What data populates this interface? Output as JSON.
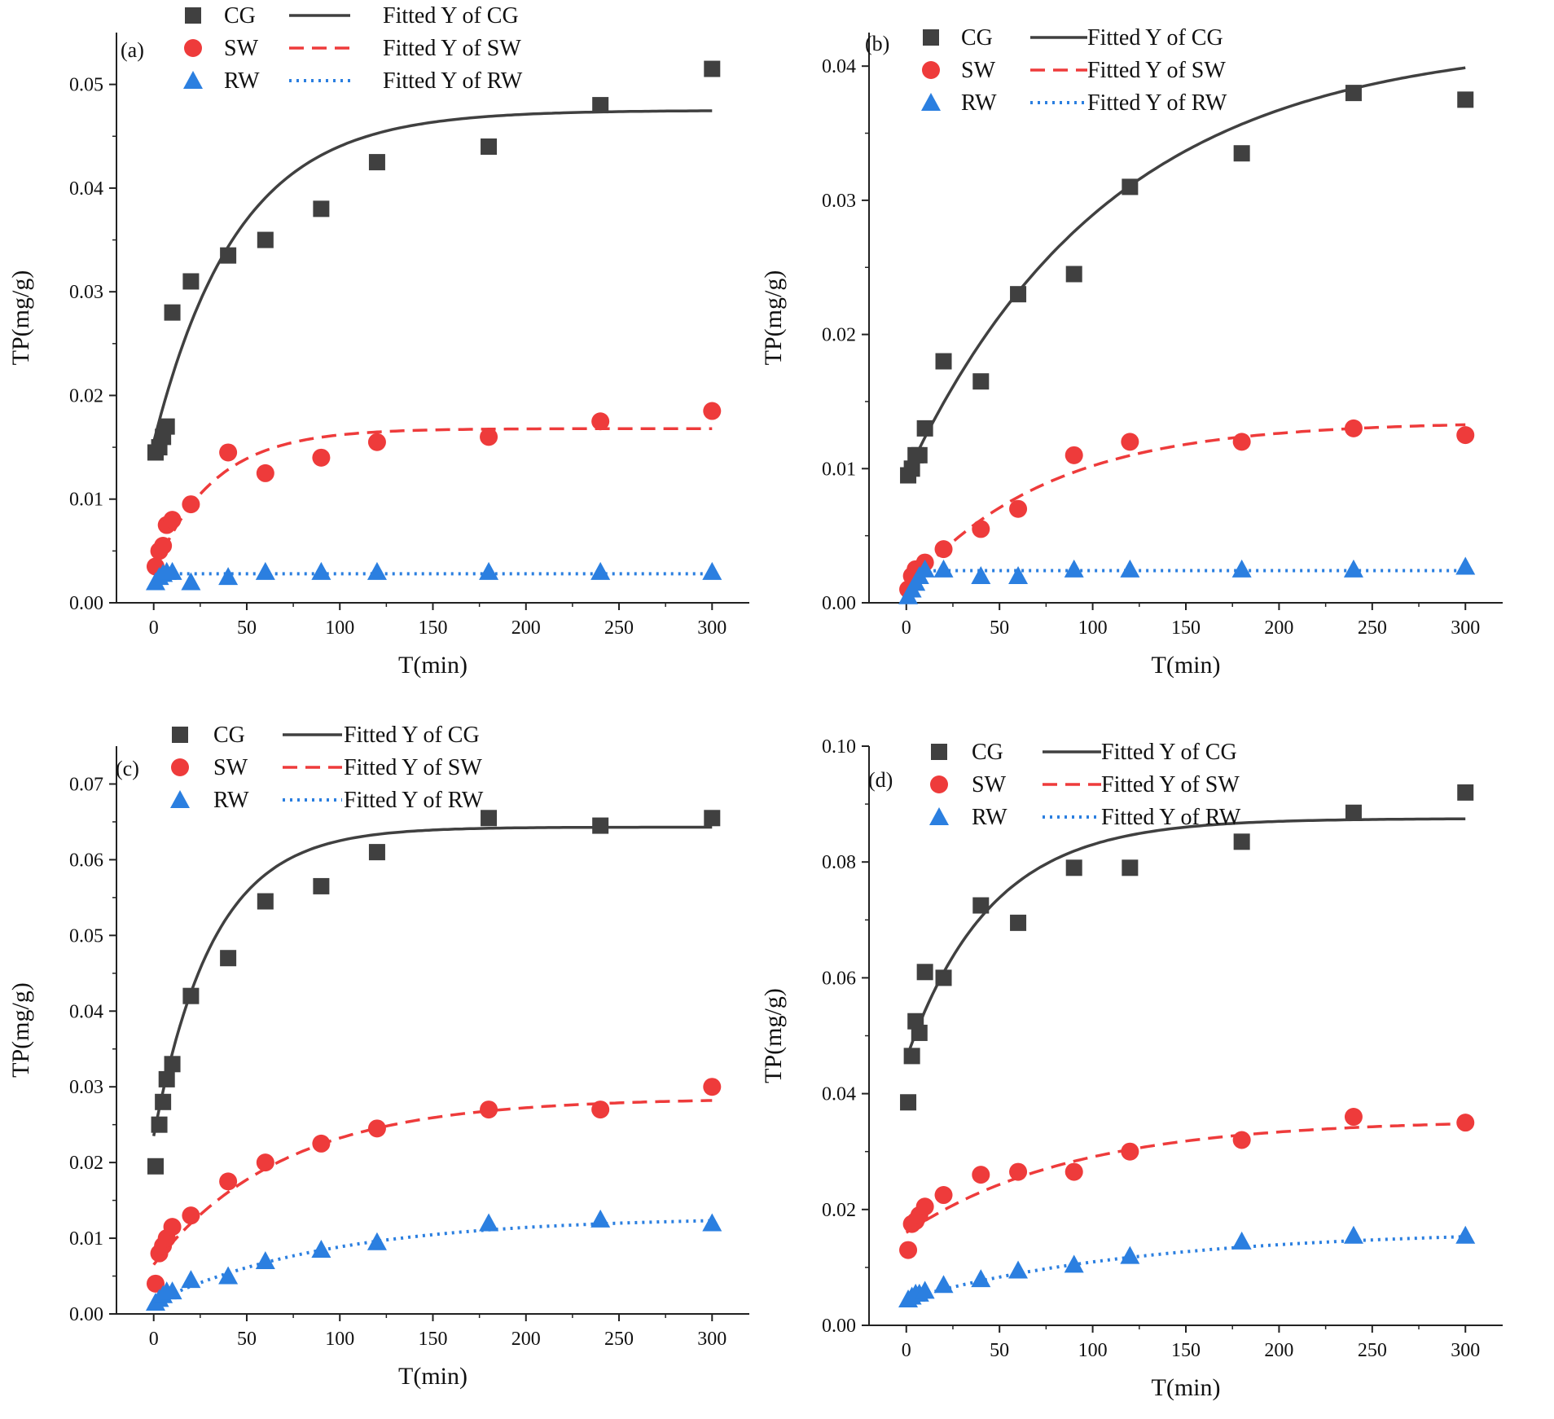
{
  "chart_data": [
    {
      "panel": "(a)",
      "type": "scatter",
      "xlabel": "T(min)",
      "ylabel": "TP(mg/g)",
      "xlim": [
        -20,
        320
      ],
      "ylim": [
        0,
        0.055
      ],
      "xticks": [
        0,
        50,
        100,
        150,
        200,
        250,
        300
      ],
      "xtick_labels": [
        "0",
        "50",
        "100",
        "150",
        "200",
        "250",
        "300"
      ],
      "yticks": [
        0,
        0.01,
        0.02,
        0.03,
        0.04,
        0.05
      ],
      "ytick_labels": [
        "0.00",
        "0.01",
        "0.02",
        "0.03",
        "0.04",
        "0.05"
      ],
      "series": [
        {
          "name": "CG",
          "marker": "square",
          "color": "#404040",
          "x": [
            1,
            3,
            5,
            7,
            10,
            20,
            40,
            60,
            90,
            120,
            180,
            240,
            300
          ],
          "y": [
            0.0145,
            0.015,
            0.016,
            0.017,
            0.028,
            0.031,
            0.0335,
            0.035,
            0.038,
            0.0425,
            0.044,
            0.048,
            0.0515
          ]
        },
        {
          "name": "SW",
          "marker": "circle",
          "color": "#ee3b3b",
          "x": [
            1,
            3,
            5,
            7,
            10,
            20,
            40,
            60,
            90,
            120,
            180,
            240,
            300
          ],
          "y": [
            0.0035,
            0.005,
            0.0055,
            0.0075,
            0.008,
            0.0095,
            0.0145,
            0.0125,
            0.014,
            0.0155,
            0.016,
            0.0175,
            0.0185
          ]
        },
        {
          "name": "RW",
          "marker": "triangle",
          "color": "#2b7fe0",
          "x": [
            1,
            3,
            5,
            7,
            10,
            20,
            40,
            60,
            90,
            120,
            180,
            240,
            300
          ],
          "y": [
            0.002,
            0.0025,
            0.0028,
            0.003,
            0.003,
            0.002,
            0.0025,
            0.003,
            0.003,
            0.003,
            0.003,
            0.003,
            0.003
          ]
        }
      ],
      "fits": [
        {
          "name": "Fitted Y of CG",
          "style": "solid",
          "color": "#404040",
          "a": 0.0475,
          "b": 0.0155,
          "tau": 45
        },
        {
          "name": "Fitted Y of SW",
          "style": "dash",
          "color": "#ee3b3b",
          "a": 0.0168,
          "b": 0.003,
          "tau": 32
        },
        {
          "name": "Fitted Y of RW",
          "style": "dot",
          "color": "#2b7fe0",
          "a": 0.0028,
          "b": 0.002,
          "tau": 2
        }
      ]
    },
    {
      "panel": "(b)",
      "type": "scatter",
      "xlabel": "T(min)",
      "ylabel": "TP(mg/g)",
      "xlim": [
        -20,
        320
      ],
      "ylim": [
        0,
        0.0425
      ],
      "xticks": [
        0,
        50,
        100,
        150,
        200,
        250,
        300
      ],
      "xtick_labels": [
        "0",
        "50",
        "100",
        "150",
        "200",
        "250",
        "300"
      ],
      "yticks": [
        0,
        0.01,
        0.02,
        0.03,
        0.04
      ],
      "ytick_labels": [
        "0.00",
        "0.01",
        "0.02",
        "0.03",
        "0.04"
      ],
      "series": [
        {
          "name": "CG",
          "marker": "square",
          "color": "#404040",
          "x": [
            1,
            3,
            5,
            7,
            10,
            20,
            40,
            60,
            90,
            120,
            180,
            240,
            300
          ],
          "y": [
            0.0095,
            0.01,
            0.011,
            0.011,
            0.013,
            0.018,
            0.0165,
            0.023,
            0.0245,
            0.031,
            0.0335,
            0.038,
            0.0375
          ]
        },
        {
          "name": "SW",
          "marker": "circle",
          "color": "#ee3b3b",
          "x": [
            1,
            3,
            5,
            7,
            10,
            20,
            40,
            60,
            90,
            120,
            180,
            240,
            300
          ],
          "y": [
            0.001,
            0.002,
            0.0025,
            0.0025,
            0.003,
            0.004,
            0.0055,
            0.007,
            0.011,
            0.012,
            0.012,
            0.013,
            0.0125
          ]
        },
        {
          "name": "RW",
          "marker": "triangle",
          "color": "#2b7fe0",
          "x": [
            1,
            3,
            5,
            7,
            10,
            20,
            40,
            60,
            90,
            120,
            180,
            240,
            300
          ],
          "y": [
            0.0005,
            0.001,
            0.0015,
            0.002,
            0.0025,
            0.0025,
            0.002,
            0.002,
            0.0025,
            0.0025,
            0.0025,
            0.0025,
            0.0027
          ]
        }
      ],
      "fits": [
        {
          "name": "Fitted Y of CG",
          "style": "solid",
          "color": "#404040",
          "a": 0.042,
          "b": 0.0095,
          "tau": 110
        },
        {
          "name": "Fitted Y of SW",
          "style": "dash",
          "color": "#ee3b3b",
          "a": 0.0135,
          "b": 0.001,
          "tau": 75
        },
        {
          "name": "Fitted Y of RW",
          "style": "dot",
          "color": "#2b7fe0",
          "a": 0.0024,
          "b": 0.0003,
          "tau": 3
        }
      ]
    },
    {
      "panel": "(c)",
      "type": "scatter",
      "xlabel": "T(min)",
      "ylabel": "TP(mg/g)",
      "xlim": [
        -20,
        320
      ],
      "ylim": [
        0,
        0.075
      ],
      "xticks": [
        0,
        50,
        100,
        150,
        200,
        250,
        300
      ],
      "xtick_labels": [
        "0",
        "50",
        "100",
        "150",
        "200",
        "250",
        "300"
      ],
      "yticks": [
        0,
        0.01,
        0.02,
        0.03,
        0.04,
        0.05,
        0.06,
        0.07
      ],
      "ytick_labels": [
        "0.00",
        "0.01",
        "0.02",
        "0.03",
        "0.04",
        "0.05",
        "0.06",
        "0.07"
      ],
      "series": [
        {
          "name": "CG",
          "marker": "square",
          "color": "#404040",
          "x": [
            1,
            3,
            5,
            7,
            10,
            20,
            40,
            60,
            90,
            120,
            180,
            240,
            300
          ],
          "y": [
            0.0195,
            0.025,
            0.028,
            0.031,
            0.033,
            0.042,
            0.047,
            0.0545,
            0.0565,
            0.061,
            0.0655,
            0.0645,
            0.0655
          ]
        },
        {
          "name": "SW",
          "marker": "circle",
          "color": "#ee3b3b",
          "x": [
            1,
            3,
            5,
            7,
            10,
            20,
            40,
            60,
            90,
            120,
            180,
            240,
            300
          ],
          "y": [
            0.004,
            0.008,
            0.009,
            0.01,
            0.0115,
            0.013,
            0.0175,
            0.02,
            0.0225,
            0.0245,
            0.027,
            0.027,
            0.03
          ]
        },
        {
          "name": "RW",
          "marker": "triangle",
          "color": "#2b7fe0",
          "x": [
            1,
            3,
            5,
            7,
            10,
            20,
            40,
            60,
            90,
            120,
            180,
            240,
            300
          ],
          "y": [
            0.0015,
            0.002,
            0.0025,
            0.003,
            0.003,
            0.0045,
            0.005,
            0.007,
            0.0085,
            0.0095,
            0.012,
            0.0125,
            0.012
          ]
        }
      ],
      "fits": [
        {
          "name": "Fitted Y of CG",
          "style": "solid",
          "color": "#404040",
          "a": 0.0643,
          "b": 0.0235,
          "tau": 32
        },
        {
          "name": "Fitted Y of SW",
          "style": "dash",
          "color": "#ee3b3b",
          "a": 0.0285,
          "b": 0.0065,
          "tau": 70
        },
        {
          "name": "Fitted Y of RW",
          "style": "dot",
          "color": "#2b7fe0",
          "a": 0.0128,
          "b": 0.0015,
          "tau": 95
        }
      ]
    },
    {
      "panel": "(d)",
      "type": "scatter",
      "xlabel": "T(min)",
      "ylabel": "TP(mg/g)",
      "xlim": [
        -20,
        320
      ],
      "ylim": [
        0,
        0.1
      ],
      "xticks": [
        0,
        50,
        100,
        150,
        200,
        250,
        300
      ],
      "xtick_labels": [
        "0",
        "50",
        "100",
        "150",
        "200",
        "250",
        "300"
      ],
      "yticks": [
        0,
        0.02,
        0.04,
        0.06,
        0.08,
        0.1
      ],
      "ytick_labels": [
        "0.00",
        "0.02",
        "0.04",
        "0.06",
        "0.08",
        "0.10"
      ],
      "series": [
        {
          "name": "CG",
          "marker": "square",
          "color": "#404040",
          "x": [
            1,
            3,
            5,
            7,
            10,
            20,
            40,
            60,
            90,
            120,
            180,
            240,
            300
          ],
          "y": [
            0.0385,
            0.0465,
            0.0525,
            0.0505,
            0.061,
            0.06,
            0.0725,
            0.0695,
            0.079,
            0.079,
            0.0835,
            0.0885,
            0.092
          ]
        },
        {
          "name": "SW",
          "marker": "circle",
          "color": "#ee3b3b",
          "x": [
            1,
            3,
            5,
            7,
            10,
            20,
            40,
            60,
            90,
            120,
            180,
            240,
            300
          ],
          "y": [
            0.013,
            0.0175,
            0.018,
            0.019,
            0.0205,
            0.0225,
            0.026,
            0.0265,
            0.0265,
            0.03,
            0.032,
            0.036,
            0.035
          ]
        },
        {
          "name": "RW",
          "marker": "triangle",
          "color": "#2b7fe0",
          "x": [
            1,
            3,
            5,
            7,
            10,
            20,
            40,
            60,
            90,
            120,
            180,
            240,
            300
          ],
          "y": [
            0.0045,
            0.005,
            0.0055,
            0.0055,
            0.006,
            0.007,
            0.008,
            0.0095,
            0.0105,
            0.012,
            0.0145,
            0.0155,
            0.0155
          ]
        }
      ],
      "fits": [
        {
          "name": "Fitted Y of CG",
          "style": "solid",
          "color": "#404040",
          "a": 0.0875,
          "b": 0.046,
          "tau": 45
        },
        {
          "name": "Fitted Y of SW",
          "style": "dash",
          "color": "#ee3b3b",
          "a": 0.0355,
          "b": 0.016,
          "tau": 90
        },
        {
          "name": "Fitted Y of RW",
          "style": "dot",
          "color": "#2b7fe0",
          "a": 0.0165,
          "b": 0.0045,
          "tau": 130
        }
      ]
    }
  ]
}
